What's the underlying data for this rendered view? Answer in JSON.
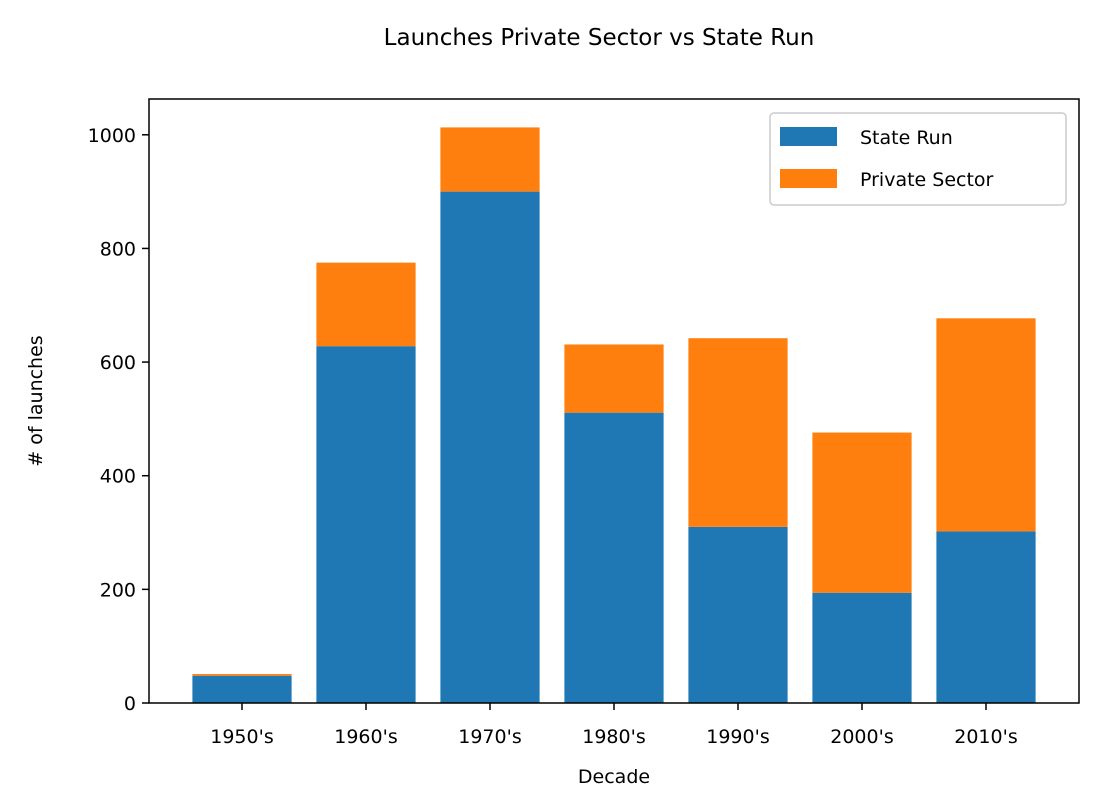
{
  "chart_data": {
    "type": "bar",
    "stacked": true,
    "title": "Launches Private Sector vs State Run",
    "xlabel": "Decade",
    "ylabel": "# of launches",
    "categories": [
      "1950's",
      "1960's",
      "1970's",
      "1980's",
      "1990's",
      "2000's",
      "2010's"
    ],
    "series": [
      {
        "name": "State Run",
        "color": "#1f77b4",
        "values": [
          48,
          628,
          900,
          511,
          310,
          194,
          302
        ]
      },
      {
        "name": "Private Sector",
        "color": "#ff7f0e",
        "values": [
          3,
          147,
          113,
          120,
          332,
          282,
          375
        ]
      }
    ],
    "ylim": [
      0,
      1063
    ],
    "yticks": [
      0,
      200,
      400,
      600,
      800,
      1000
    ],
    "legend_position": "top-right",
    "grid": false
  }
}
